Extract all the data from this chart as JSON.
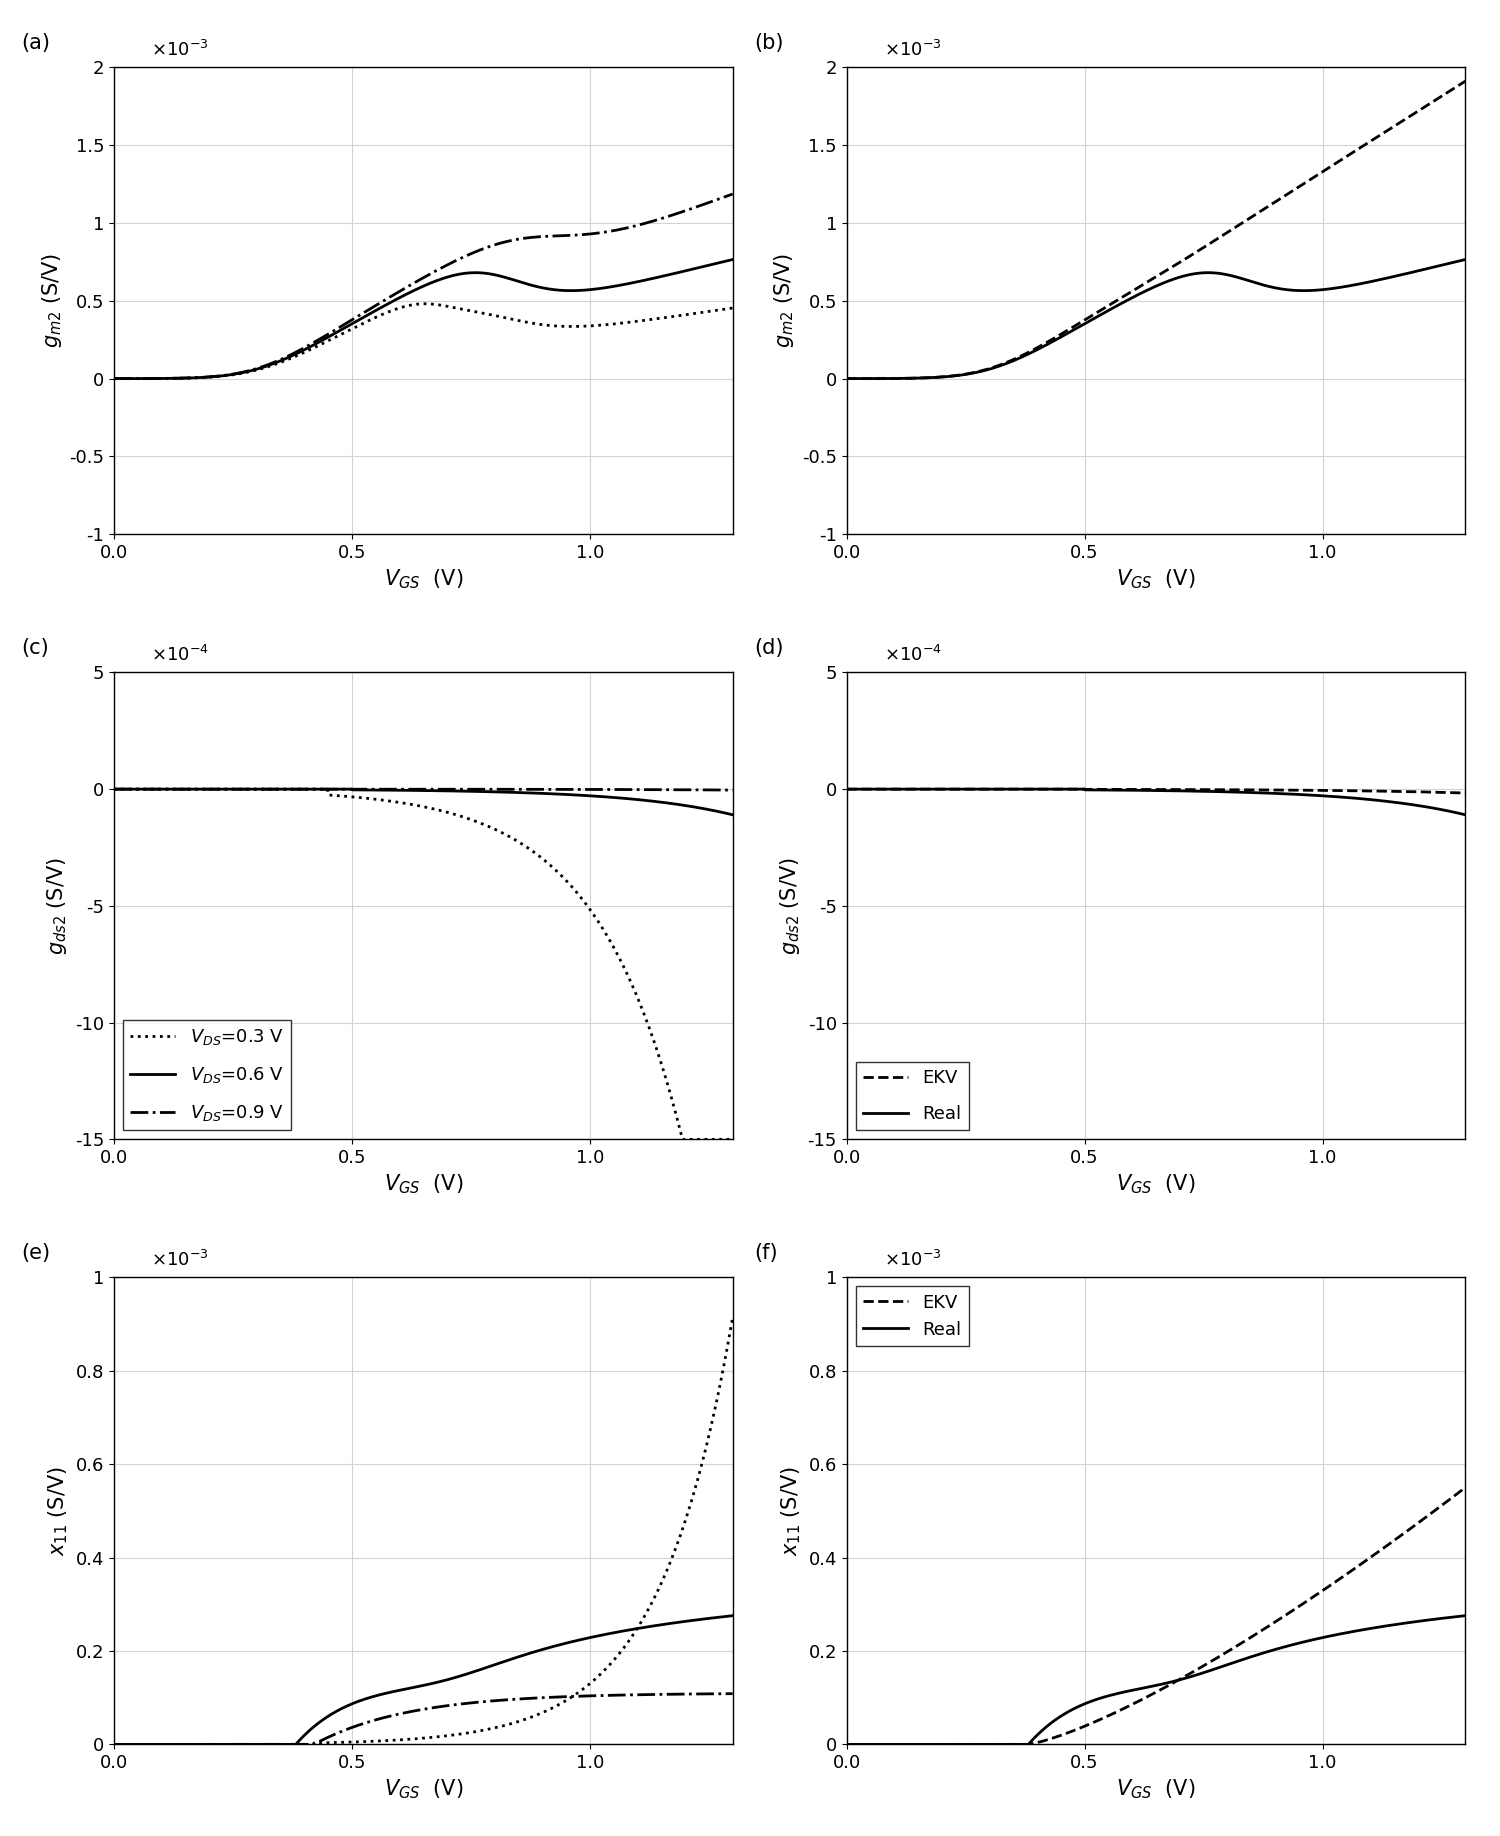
{
  "panel_labels": [
    "(a)",
    "(b)",
    "(c)",
    "(d)",
    "(e)",
    "(f)"
  ],
  "ylabel_a": "$g_{m2}$ (S/V)",
  "ylabel_c": "$g_{ds2}$ (S/V)",
  "ylabel_e": "$x_{11}$ (S/V)",
  "xlabel": "$V_{GS}$  (V)",
  "xlim": [
    0,
    1.3
  ],
  "xticks": [
    0,
    0.5,
    1.0
  ],
  "ylim_ab": [
    -0.001,
    0.002
  ],
  "yticks_ab": [
    -0.001,
    -0.0005,
    0.0,
    0.0005,
    0.001,
    0.0015,
    0.002
  ],
  "ylim_cd": [
    -0.0015,
    0.0005
  ],
  "yticks_cd": [
    -0.0015,
    -0.001,
    -0.0005,
    0.0,
    0.0005
  ],
  "ylim_ef": [
    0,
    0.001
  ],
  "yticks_ef": [
    0.0,
    0.0002,
    0.0004,
    0.0006,
    0.0008,
    0.001
  ]
}
